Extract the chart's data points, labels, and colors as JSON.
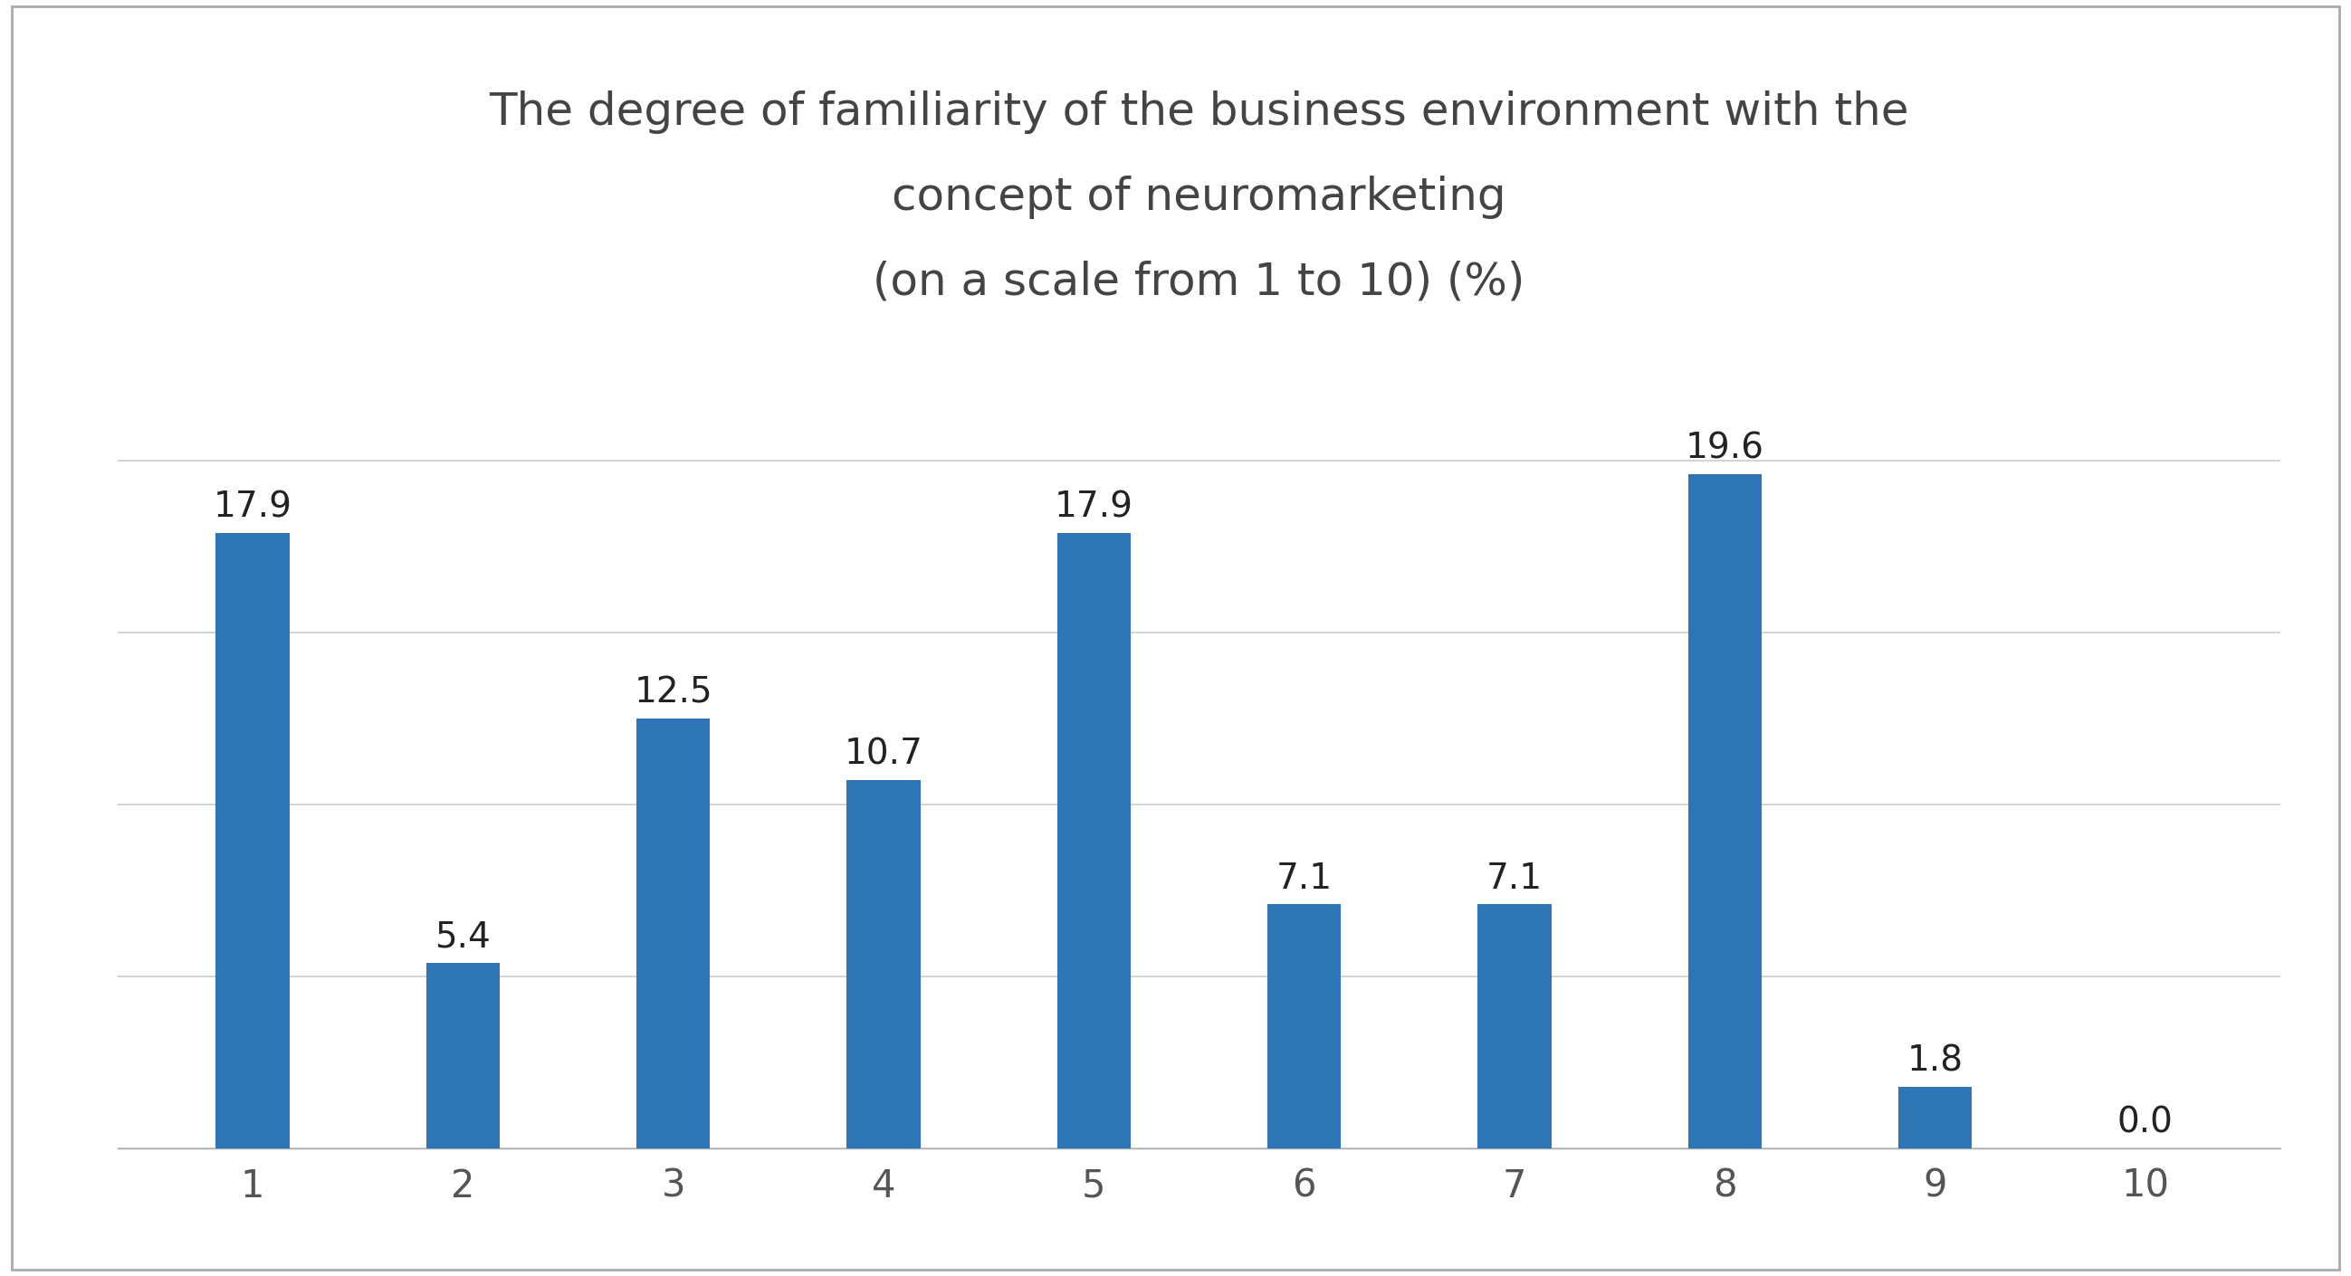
{
  "categories": [
    1,
    2,
    3,
    4,
    5,
    6,
    7,
    8,
    9,
    10
  ],
  "values": [
    17.9,
    5.4,
    12.5,
    10.7,
    17.9,
    7.1,
    7.1,
    19.6,
    1.8,
    0.0
  ],
  "bar_color": "#2E75B6",
  "title_line1": "The degree of familiarity of the business environment with the",
  "title_line2": "concept of neuromarketing",
  "title_line3": "(on a scale from 1 to 10) (%)",
  "title_fontsize": 36,
  "label_fontsize": 28,
  "tick_fontsize": 30,
  "background_color": "#ffffff",
  "ylim": [
    0,
    23
  ],
  "bar_width": 0.35,
  "grid_color": "#cccccc",
  "border_color": "#aaaaaa",
  "label_color": "#222222",
  "tick_color": "#555555"
}
